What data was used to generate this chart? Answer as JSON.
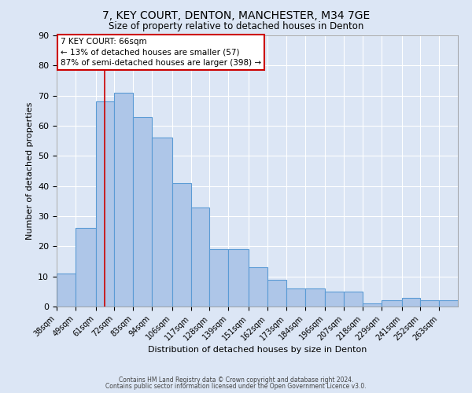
{
  "title1": "7, KEY COURT, DENTON, MANCHESTER, M34 7GE",
  "title2": "Size of property relative to detached houses in Denton",
  "xlabel": "Distribution of detached houses by size in Denton",
  "ylabel": "Number of detached properties",
  "categories": [
    "38sqm",
    "49sqm",
    "61sqm",
    "72sqm",
    "83sqm",
    "94sqm",
    "106sqm",
    "117sqm",
    "128sqm",
    "139sqm",
    "151sqm",
    "162sqm",
    "173sqm",
    "184sqm",
    "196sqm",
    "207sqm",
    "218sqm",
    "229sqm",
    "241sqm",
    "252sqm",
    "263sqm"
  ],
  "values": [
    11,
    26,
    68,
    71,
    63,
    56,
    41,
    33,
    19,
    19,
    13,
    9,
    6,
    6,
    5,
    5,
    1,
    2,
    3,
    2,
    2
  ],
  "bar_color": "#aec6e8",
  "bar_edge_color": "#5b9bd5",
  "background_color": "#dce6f5",
  "grid_color": "#ffffff",
  "annotation_text": "7 KEY COURT: 66sqm\n← 13% of detached houses are smaller (57)\n87% of semi-detached houses are larger (398) →",
  "annotation_box_color": "#ffffff",
  "annotation_box_edge_color": "#cc0000",
  "vline_color": "#cc0000",
  "footer1": "Contains HM Land Registry data © Crown copyright and database right 2024.",
  "footer2": "Contains public sector information licensed under the Open Government Licence v3.0.",
  "ylim": [
    0,
    90
  ],
  "yticks": [
    0,
    10,
    20,
    30,
    40,
    50,
    60,
    70,
    80,
    90
  ],
  "bin_edges": [
    38,
    49,
    61,
    72,
    83,
    94,
    106,
    117,
    128,
    139,
    151,
    162,
    173,
    184,
    196,
    207,
    218,
    229,
    241,
    252,
    263,
    274
  ]
}
